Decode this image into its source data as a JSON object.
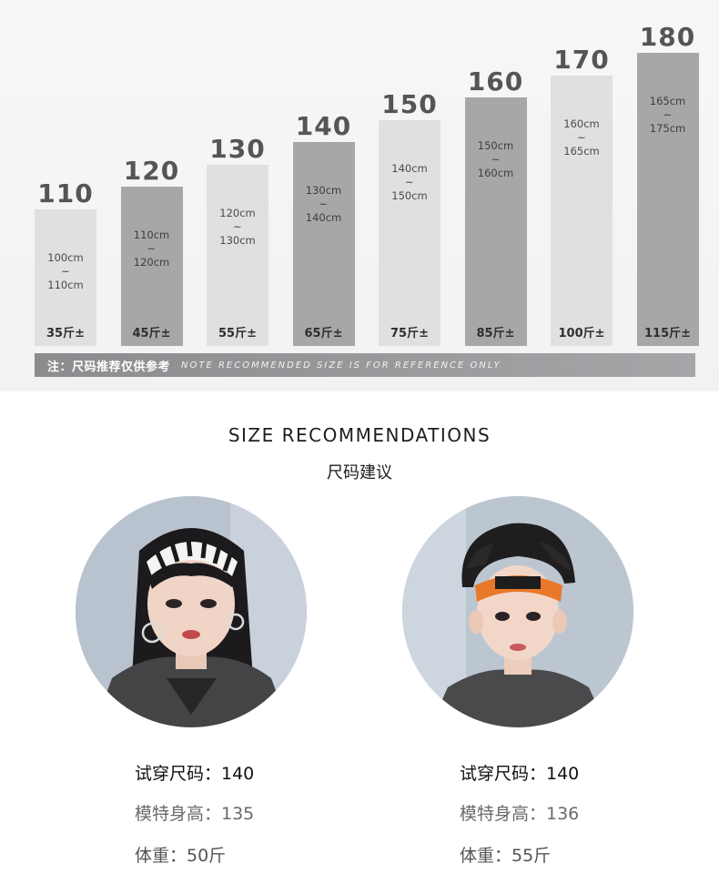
{
  "chart_data": {
    "type": "bar",
    "categories": [
      "110",
      "120",
      "130",
      "140",
      "150",
      "160",
      "170",
      "180"
    ],
    "values": [
      110,
      120,
      130,
      140,
      150,
      160,
      170,
      180
    ],
    "ranges": [
      [
        "100cm",
        "~",
        "110cm"
      ],
      [
        "110cm",
        "~",
        "120cm"
      ],
      [
        "120cm",
        "~",
        "130cm"
      ],
      [
        "130cm",
        "~",
        "140cm"
      ],
      [
        "140cm",
        "~",
        "150cm"
      ],
      [
        "150cm",
        "~",
        "160cm"
      ],
      [
        "160cm",
        "~",
        "165cm"
      ],
      [
        "165cm",
        "~",
        "175cm"
      ]
    ],
    "weights": [
      "35斤±",
      "45斤±",
      "55斤±",
      "65斤±",
      "75斤±",
      "85斤±",
      "100斤±",
      "115斤±"
    ],
    "ylim": [
      100,
      180
    ],
    "colors": {
      "light": "#e0dfe2",
      "dark": "#a7a6a9",
      "label": "#555557"
    }
  },
  "note": {
    "cn": "注：尺码推荐仅供参考",
    "en": "NOTE RECOMMENDED SIZE IS FOR REFERENCE ONLY"
  },
  "section": {
    "title": "SIZE RECOMMENDATIONS",
    "subtitle": "尺码建议"
  },
  "models": [
    {
      "size": "试穿尺码：140",
      "height": "模特身高：135",
      "weight": "体重：50斤",
      "photo_icon": "girl-model-photo"
    },
    {
      "size": "试穿尺码：140",
      "height": "模特身高：136",
      "weight": "体重：55斤",
      "photo_icon": "boy-model-photo"
    }
  ]
}
